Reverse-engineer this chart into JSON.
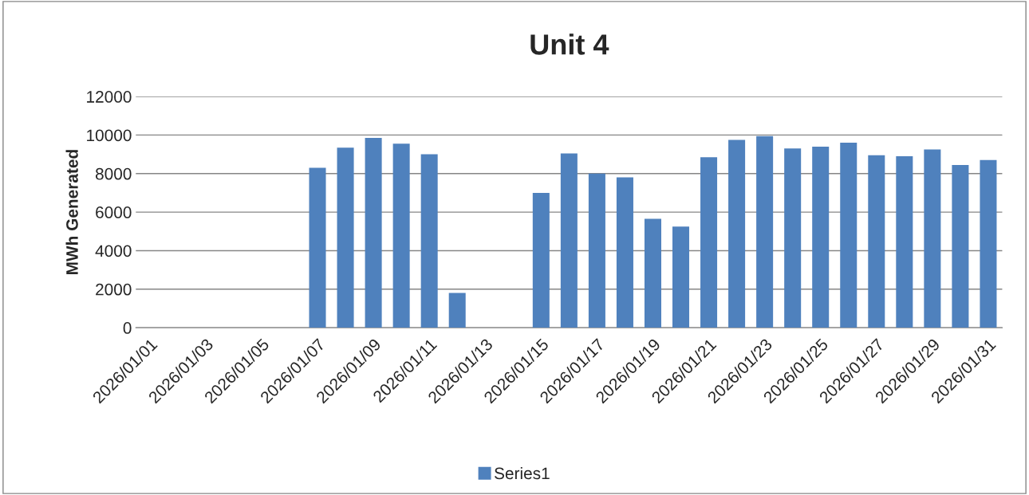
{
  "chart_data": {
    "type": "bar",
    "title": "Unit 4",
    "ylabel": "MWh Generated",
    "categories": [
      "2026/01/01",
      null,
      "2026/01/03",
      null,
      "2026/01/05",
      null,
      "2026/01/07",
      null,
      "2026/01/09",
      null,
      "2026/01/11",
      null,
      "2026/01/13",
      null,
      "2026/01/15",
      null,
      "2026/01/17",
      null,
      "2026/01/19",
      null,
      "2026/01/21",
      null,
      "2026/01/23",
      null,
      "2026/01/25",
      null,
      "2026/01/27",
      null,
      "2026/01/29",
      null,
      "2026/01/31"
    ],
    "series": [
      {
        "name": "Series1",
        "color": "#4f81bd",
        "values": [
          null,
          null,
          null,
          null,
          null,
          null,
          8300,
          9350,
          9850,
          9550,
          9000,
          1800,
          null,
          null,
          7000,
          9050,
          8000,
          7800,
          5650,
          5250,
          8850,
          9750,
          9950,
          9300,
          9400,
          9600,
          8950,
          8900,
          9250,
          8450,
          8700
        ]
      }
    ],
    "ylim": [
      0,
      12000
    ],
    "yticks": [
      0,
      2000,
      4000,
      6000,
      8000,
      10000,
      12000
    ],
    "grid": "y",
    "legend": "bottom"
  }
}
